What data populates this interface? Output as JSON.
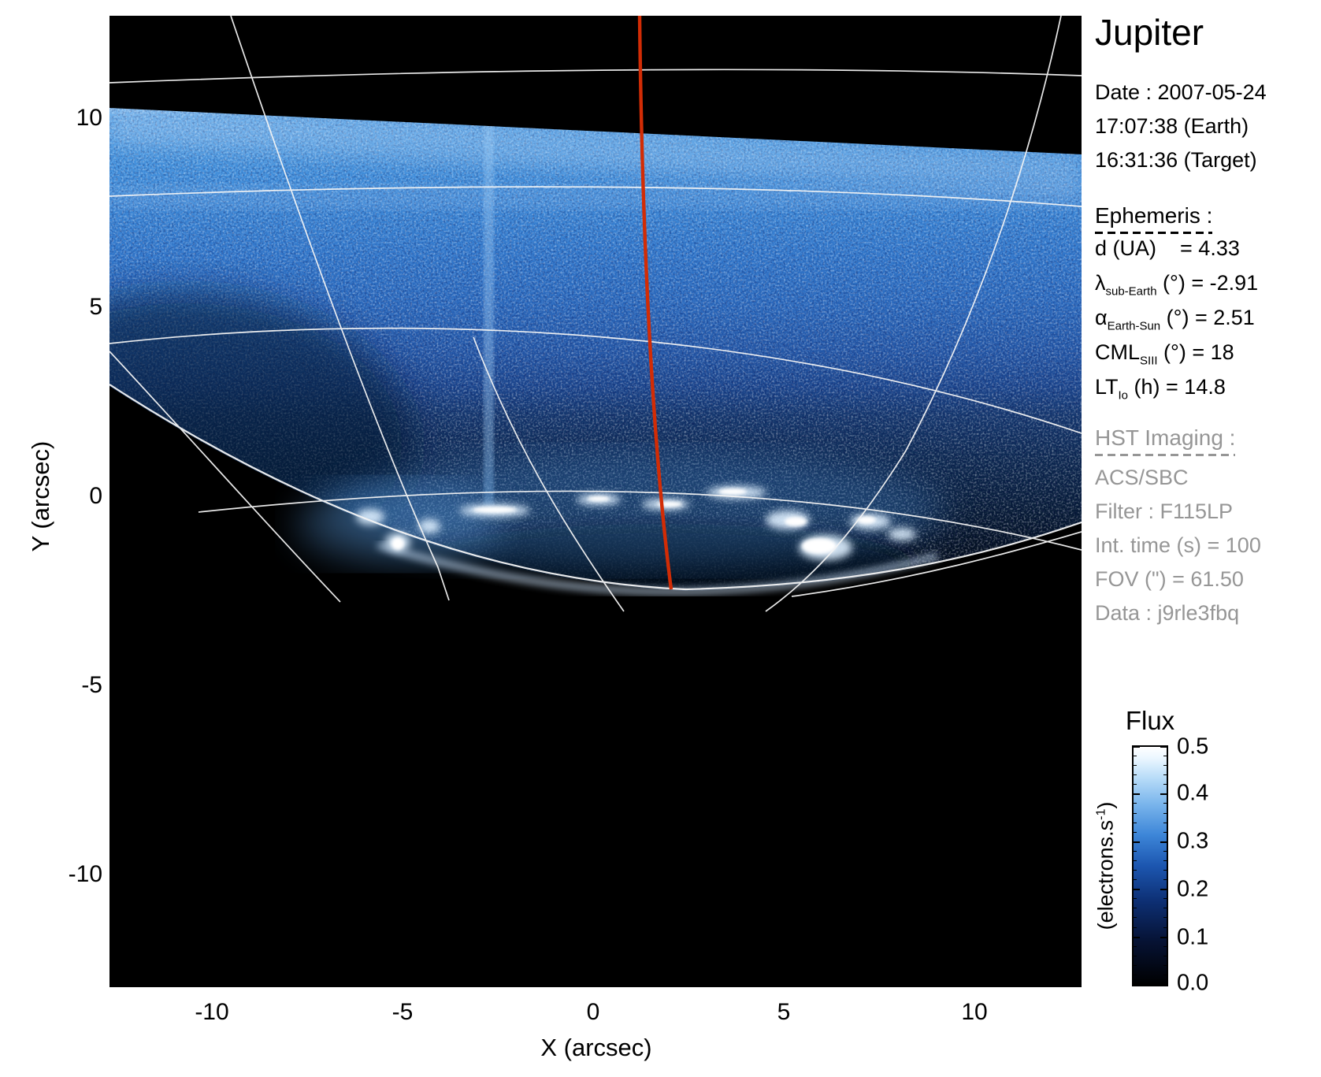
{
  "panel": {
    "title": "Jupiter",
    "date_lines": [
      "Date : 2007-05-24",
      "17:07:38 (Earth)",
      "16:31:36 (Target)"
    ],
    "ephemeris": {
      "heading": "Ephemeris :",
      "rows": [
        {
          "sym": "d",
          "sub": "",
          "rest": " (UA)    = 4.33"
        },
        {
          "sym": "λ",
          "sub": "sub-Earth",
          "rest": " (°) = -2.91"
        },
        {
          "sym": "α",
          "sub": "Earth-Sun",
          "rest": " (°) = 2.51"
        },
        {
          "sym": "CML",
          "sub": "SIII",
          "rest": " (°) = 18"
        },
        {
          "sym": "LT",
          "sub": "Io",
          "rest": " (h) = 14.8"
        }
      ]
    },
    "hst": {
      "heading": "HST Imaging :",
      "lines": [
        "ACS/SBC",
        "Filter : F115LP",
        "Int. time (s) = 100",
        "FOV (\") = 61.50",
        "Data : j9rle3fbq"
      ]
    }
  },
  "axes": {
    "x": {
      "title": "X (arcsec)",
      "ticks": [
        "-10",
        "-5",
        "0",
        "5",
        "10"
      ]
    },
    "y": {
      "title": "Y (arcsec)",
      "ticks": [
        "10",
        "5",
        "0",
        "-5",
        "-10"
      ]
    }
  },
  "colorbar": {
    "title": "Flux",
    "unit_prefix": "(electrons.s",
    "unit_sup": "-1",
    "unit_suffix": ")",
    "ticks": [
      "0.5",
      "0.4",
      "0.3",
      "0.2",
      "0.1",
      "0.0"
    ],
    "minor_per_major": 4,
    "top_color": "#ffffff",
    "mid_color": "#2a7fd4",
    "bottom_color": "#000000"
  },
  "chart_data": {
    "type": "heatmap",
    "title": "Jupiter",
    "xlabel": "X (arcsec)",
    "ylabel": "Y (arcsec)",
    "xlim": [
      -12.7,
      12.8
    ],
    "ylim": [
      -13.0,
      12.7
    ],
    "x_ticks": [
      -10,
      -5,
      0,
      5,
      10
    ],
    "y_ticks": [
      10,
      5,
      0,
      -5,
      -10
    ],
    "colorbar": {
      "label": "Flux (electrons.s⁻¹)",
      "range": [
        0.0,
        0.5
      ],
      "ticks": [
        0.0,
        0.1,
        0.2,
        0.3,
        0.4,
        0.5
      ],
      "colormap": "black → dark blue → blue → light blue → white"
    },
    "image_features": {
      "background": "black outside detector field and below planetary limb",
      "detector_edge_line_arcsec": [
        [
          -12.7,
          10.2
        ],
        [
          12.8,
          9.0
        ]
      ],
      "disk_glow": "noisy blue airglow filling the detector field, brightest band near the top edge, darkening toward the limb",
      "limb_curve_arcsec": [
        [
          -12.7,
          2.9
        ],
        [
          -5.3,
          -1.0
        ],
        [
          2.3,
          -2.5
        ],
        [
          12.8,
          -0.7
        ]
      ],
      "aurora_blobs_arcsec": [
        [
          -5.9,
          -0.5
        ],
        [
          -5.2,
          -1.2
        ],
        [
          -4.4,
          -0.8
        ],
        [
          -2.7,
          -0.4
        ],
        [
          0.0,
          -0.1
        ],
        [
          1.8,
          -0.2
        ],
        [
          3.6,
          0.1
        ],
        [
          5.0,
          -0.6
        ],
        [
          5.9,
          -1.3
        ],
        [
          7.1,
          -0.7
        ],
        [
          7.9,
          -1.0
        ]
      ],
      "aurora": "bright white auroral oval segments along the limb between X ≈ -6 and X ≈ 8 arcsec",
      "red_meridian_arcsec": [
        [
          1.1,
          12.6
        ],
        [
          1.9,
          -2.4
        ]
      ],
      "graticule": "white planetary latitude/longitude wireframe; meridians converge toward pole just below the limb",
      "artifact_column_arcsec_x": -2.9
    },
    "legend_position": "none",
    "grid": false
  }
}
